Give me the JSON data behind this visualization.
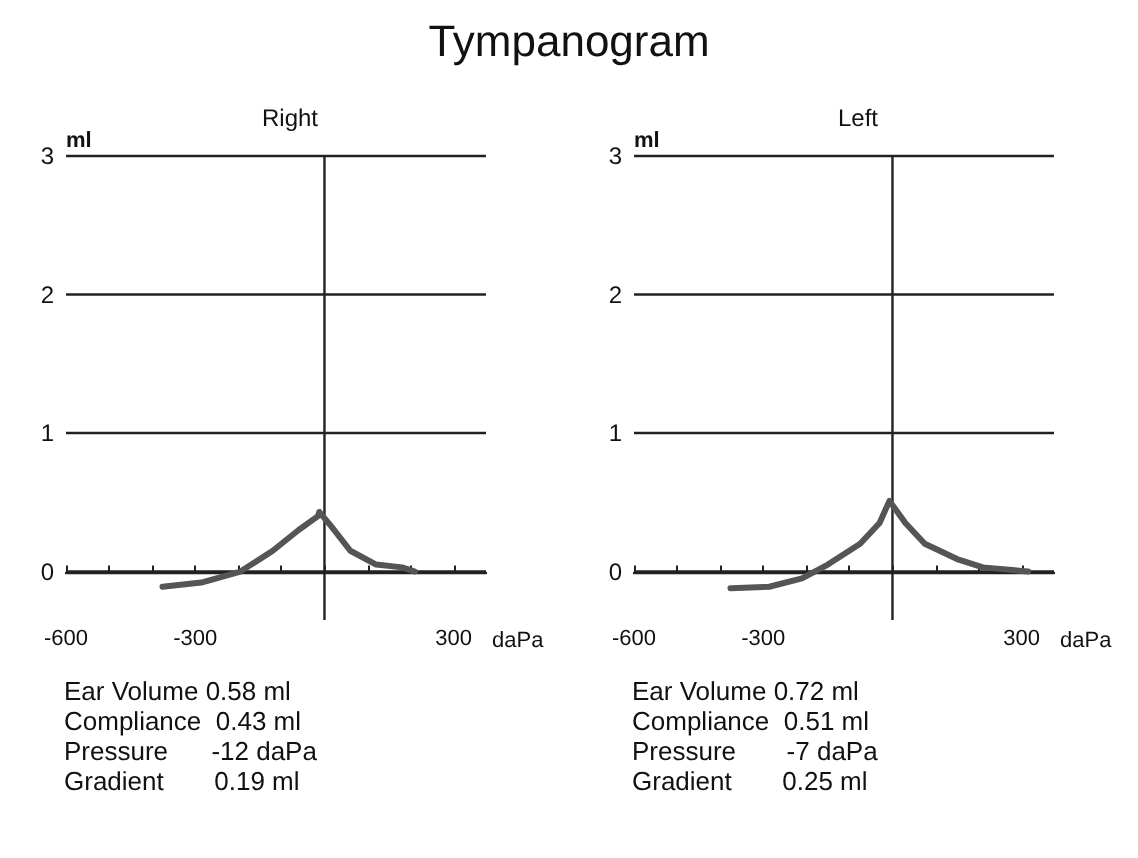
{
  "chart_data": [
    {
      "type": "line",
      "title": "Tympanogram",
      "subtitle": "Right",
      "xlabel": "daPa",
      "ylabel": "ml",
      "x": [
        -376,
        -286,
        -195,
        -120,
        -60,
        -15,
        -12,
        15,
        60,
        120,
        180,
        210
      ],
      "series": [
        {
          "color": "#555555",
          "values": [
            -0.11,
            -0.08,
            0,
            0.15,
            0.3,
            0.4,
            0.43,
            0.33,
            0.15,
            0.05,
            0.03,
            0
          ]
        }
      ],
      "xlim": [
        -600,
        375
      ],
      "xticks": [
        -600,
        {
          "value": -500,
          "label": null
        },
        {
          "value": -400,
          "label": null
        },
        -300,
        {
          "value": -200,
          "label": null
        },
        {
          "value": -100,
          "label": null
        },
        {
          "value": 0,
          "label": null
        },
        {
          "value": 100,
          "label": null
        },
        {
          "value": 200,
          "label": null
        },
        300
      ],
      "ylim": [
        -0.35,
        3
      ],
      "yticks": [
        0,
        1,
        2,
        3
      ],
      "grid": "y",
      "marker": "none",
      "line_style": "solid",
      "ref_lines": [
        {
          "axis": "x",
          "value": 0,
          "color": "#222222"
        }
      ],
      "annotations": [
        "Ear Volume 0.58 ml",
        "Compliance  0.43 ml",
        "Pressure      -12 daPa",
        "Gradient       0.19 ml"
      ]
    },
    {
      "type": "line",
      "subtitle": "Left",
      "xlabel": "daPa",
      "ylabel": "ml",
      "x": [
        -376,
        -286,
        -210,
        -150,
        -75,
        -30,
        -7,
        30,
        75,
        150,
        210,
        315
      ],
      "series": [
        {
          "color": "#555555",
          "values": [
            -0.12,
            -0.11,
            -0.05,
            0.05,
            0.2,
            0.35,
            0.51,
            0.35,
            0.2,
            0.09,
            0.03,
            0
          ]
        }
      ],
      "xlim": [
        -600,
        375
      ],
      "xticks": [
        -600,
        {
          "value": -500,
          "label": null
        },
        {
          "value": -400,
          "label": null
        },
        -300,
        {
          "value": -200,
          "label": null
        },
        {
          "value": -100,
          "label": null
        },
        {
          "value": 0,
          "label": null
        },
        {
          "value": 100,
          "label": null
        },
        {
          "value": 200,
          "label": null
        },
        300
      ],
      "ylim": [
        -0.35,
        3
      ],
      "yticks": [
        0,
        1,
        2,
        3
      ],
      "grid": "y",
      "marker": "none",
      "line_style": "solid",
      "ref_lines": [
        {
          "axis": "x",
          "value": 0,
          "color": "#222222"
        }
      ],
      "annotations": [
        "Ear Volume 0.72 ml",
        "Compliance  0.51 ml",
        "Pressure       -7 daPa",
        "Gradient       0.25 ml"
      ]
    }
  ]
}
